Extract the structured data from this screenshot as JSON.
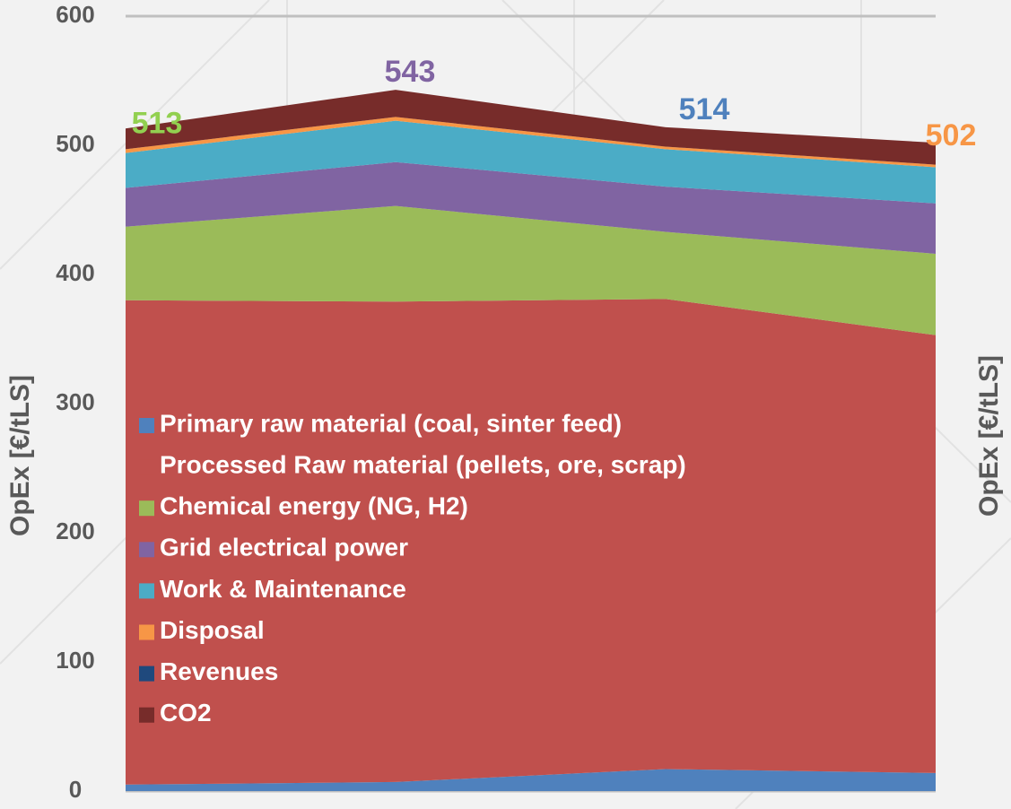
{
  "chart_data": {
    "type": "stacked_area",
    "y_label": "OpEx [€/tLS]",
    "y2_label": "OpEx [€/tLS]",
    "categories": [
      null,
      null,
      null,
      null
    ],
    "series": [
      {
        "name": "Primary raw material (coal, sinter feed)",
        "color": "#4f81bd",
        "values": [
          5,
          7,
          17,
          14
        ]
      },
      {
        "name": "Processed Raw material (pellets, ore, scrap)",
        "color": "#c0504d",
        "values": [
          375,
          372,
          364,
          339
        ]
      },
      {
        "name": "Chemical energy (NG, H2)",
        "color": "#9bbb59",
        "values": [
          57,
          74,
          52,
          63
        ]
      },
      {
        "name": "Grid electrical power",
        "color": "#8064a2",
        "values": [
          30,
          34,
          35,
          39
        ]
      },
      {
        "name": "Work & Maintenance",
        "color": "#4bacc6",
        "values": [
          27,
          32,
          29,
          28
        ]
      },
      {
        "name": "Disposal",
        "color": "#f79646",
        "values": [
          3,
          3,
          2,
          2
        ]
      },
      {
        "name": "Revenues",
        "color": "#1f497d",
        "values": [
          0,
          0,
          0,
          0
        ]
      },
      {
        "name": "CO2",
        "color": "#772c2a",
        "values": [
          16,
          21,
          15,
          17
        ]
      }
    ],
    "totals": [
      513,
      543,
      514,
      502
    ],
    "total_colors": [
      "#92d050",
      "#8064a2",
      "#4f81bd",
      "#f79646"
    ],
    "ylim": [
      0,
      600
    ],
    "yticks": [
      0,
      100,
      200,
      300,
      400,
      500,
      600
    ],
    "grid": true,
    "legend": "lower left"
  }
}
